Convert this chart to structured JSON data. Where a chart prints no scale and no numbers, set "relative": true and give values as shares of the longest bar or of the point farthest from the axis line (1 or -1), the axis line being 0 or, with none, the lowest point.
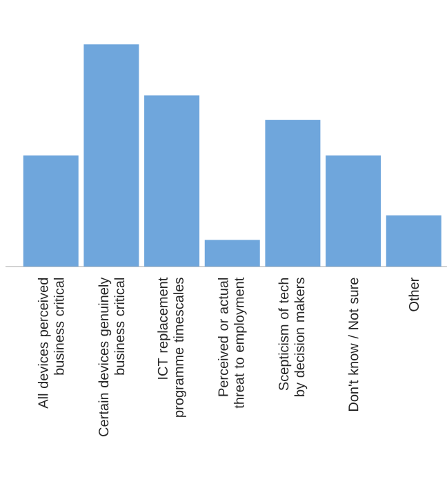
{
  "chart_data": {
    "type": "bar",
    "relative": true,
    "color": "#6fa6dc",
    "categories": [
      "All devices perceived business critical",
      "Certain devices genuinely business critical",
      "ICT replacement programme timescales",
      "Perceived or actual threat to employment",
      "Scepticism of tech by decision makers",
      "Don't know / Not sure",
      "Other"
    ],
    "values": [
      0.5,
      1,
      0.77,
      0.12,
      0.66,
      0.5,
      0.23
    ]
  }
}
